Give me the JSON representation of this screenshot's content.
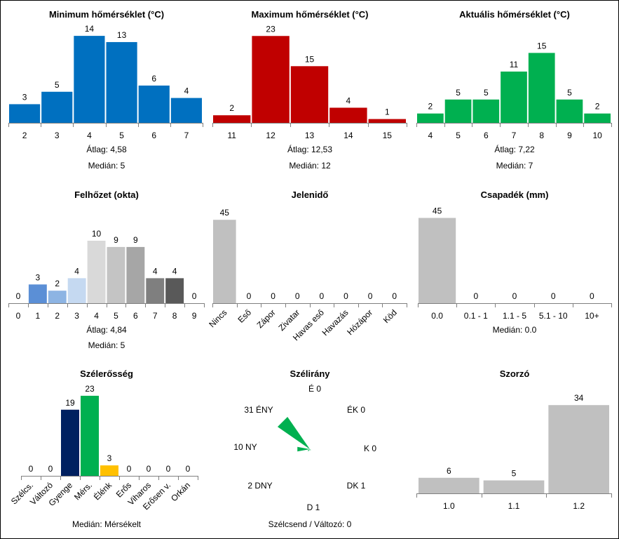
{
  "chart_data": [
    {
      "id": "min",
      "type": "bar",
      "title": "Minimum hőmérséklet (°C)",
      "categories": [
        "2",
        "3",
        "4",
        "5",
        "6",
        "7"
      ],
      "values": [
        3,
        5,
        14,
        13,
        6,
        4
      ],
      "colors": [
        "#0070c0"
      ],
      "stats": [
        "Átlag:  4,58",
        "Medián:  5"
      ]
    },
    {
      "id": "max",
      "type": "bar",
      "title": "Maximum hőmérséklet (°C)",
      "categories": [
        "11",
        "12",
        "13",
        "14",
        "15"
      ],
      "values": [
        2,
        23,
        15,
        4,
        1
      ],
      "colors": [
        "#c00000"
      ],
      "stats": [
        "Átlag:  12,53",
        "Medián:  12"
      ]
    },
    {
      "id": "cur",
      "type": "bar",
      "title": "Aktuális hőmérséklet (°C)",
      "categories": [
        "4",
        "5",
        "6",
        "7",
        "8",
        "9",
        "10"
      ],
      "values": [
        2,
        5,
        5,
        11,
        15,
        5,
        2
      ],
      "colors": [
        "#00b050"
      ],
      "stats": [
        "Átlag:  7,22",
        "Medián:  7"
      ]
    },
    {
      "id": "cloud",
      "type": "bar",
      "title": "Felhőzet (okta)",
      "categories": [
        "0",
        "1",
        "2",
        "3",
        "4",
        "5",
        "6",
        "7",
        "8",
        "9"
      ],
      "values": [
        0,
        3,
        2,
        4,
        10,
        9,
        9,
        4,
        4,
        0
      ],
      "colors": [
        "#aaaaaa",
        "#5b8fd6",
        "#8db4e3",
        "#c5d9f1",
        "#d9d9d9",
        "#c4c4c4",
        "#a6a6a6",
        "#7f7f7f",
        "#595959",
        "#404040"
      ],
      "stats": [
        "Átlag:  4,84",
        "Medián:  5"
      ]
    },
    {
      "id": "weather",
      "type": "bar",
      "title": "Jelenidő",
      "categories": [
        "Nincs",
        "Eső",
        "Zápor",
        "Zivatar",
        "Havas eső",
        "Havazás",
        "Hózápor",
        "Köd"
      ],
      "values": [
        45,
        0,
        0,
        0,
        0,
        0,
        0,
        0
      ],
      "colors": [
        "#c0c0c0"
      ],
      "stats": []
    },
    {
      "id": "precip",
      "type": "bar",
      "title": "Csapadék (mm)",
      "categories": [
        "0.0",
        "0.1 - 1",
        "1.1 - 5",
        "5.1 - 10",
        "10+"
      ],
      "values": [
        45,
        0,
        0,
        0,
        0
      ],
      "colors": [
        "#c0c0c0"
      ],
      "stats": [
        "Medián:  0.0"
      ]
    },
    {
      "id": "windspeed",
      "type": "bar",
      "title": "Szélerősség",
      "categories": [
        "Szélcs.",
        "Változó",
        "Gyenge",
        "Mérs.",
        "Élénk",
        "Erős",
        "Viharos",
        "Erősen v.",
        "Orkán"
      ],
      "values": [
        0,
        0,
        19,
        23,
        3,
        0,
        0,
        0,
        0
      ],
      "colors": [
        "#7f7f7f",
        "#7f7f7f",
        "#002060",
        "#00b050",
        "#ffc000",
        "#ff0000",
        "#c00000",
        "#7030a0",
        "#000000"
      ],
      "stats": [
        "Medián:  Mérsékelt"
      ]
    },
    {
      "id": "winddir",
      "type": "rose",
      "title": "Szélirány",
      "directions": [
        {
          "name": "É",
          "count": 0
        },
        {
          "name": "ÉK",
          "count": 0
        },
        {
          "name": "K",
          "count": 0
        },
        {
          "name": "DK",
          "count": 1
        },
        {
          "name": "D",
          "count": 1
        },
        {
          "name": "DNY",
          "count": 2
        },
        {
          "name": "NY",
          "count": 10
        },
        {
          "name": "ÉNY",
          "count": 31
        }
      ],
      "footer": "Szélcsend / Változó: 0",
      "color": "#00b050"
    },
    {
      "id": "mult",
      "type": "bar",
      "title": "Szorzó",
      "categories": [
        "1.0",
        "1.1",
        "1.2"
      ],
      "values": [
        6,
        5,
        34
      ],
      "colors": [
        "#c0c0c0"
      ],
      "stats": []
    }
  ]
}
